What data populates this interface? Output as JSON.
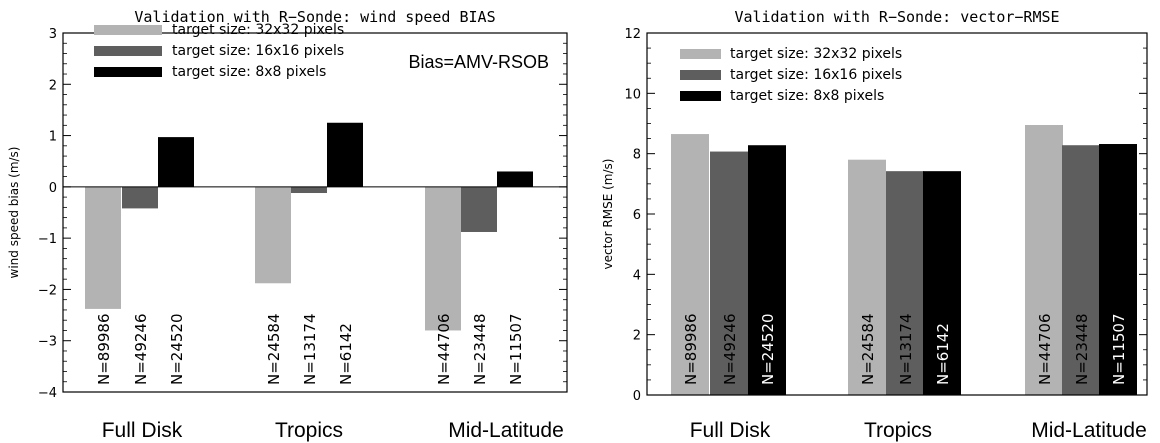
{
  "chart_data": [
    {
      "type": "bar",
      "title": "Validation with R−Sonde: wind speed BIAS",
      "ylabel": "wind speed bias (m/s)",
      "xlabel": "",
      "ylim": [
        -4,
        3
      ],
      "yticks": [
        "−4",
        "−3",
        "−2",
        "−1",
        "0",
        "1",
        "2",
        "3"
      ],
      "annotation": "Bias=AMV-RSOB",
      "categories": [
        "Full Disk",
        "Tropics",
        "Mid-Latitude"
      ],
      "series": [
        {
          "name": "target size: 32x32 pixels",
          "color": "#b3b3b3",
          "values": [
            -2.38,
            -1.88,
            -2.8
          ],
          "counts": [
            "N=89986",
            "N=24584",
            "N=44706"
          ]
        },
        {
          "name": "target size: 16x16 pixels",
          "color": "#5e5e5e",
          "values": [
            -0.42,
            -0.12,
            -0.88
          ],
          "counts": [
            "N=49246",
            "N=13174",
            "N=23448"
          ]
        },
        {
          "name": "target size: 8x8 pixels",
          "color": "#000000",
          "values": [
            0.97,
            1.25,
            0.3
          ],
          "counts": [
            "N=24520",
            "N=6142",
            "N=11507"
          ]
        }
      ],
      "legend_position": "top-left"
    },
    {
      "type": "bar",
      "title": "Validation with R−Sonde: vector−RMSE",
      "ylabel": "vector RMSE (m/s)",
      "xlabel": "",
      "ylim": [
        0,
        12
      ],
      "yticks": [
        "0",
        "2",
        "4",
        "6",
        "8",
        "10",
        "12"
      ],
      "categories": [
        "Full Disk",
        "Tropics",
        "Mid-Latitude"
      ],
      "series": [
        {
          "name": "target size: 32x32 pixels",
          "color": "#b3b3b3",
          "values": [
            8.65,
            7.8,
            8.95
          ],
          "counts": [
            "N=89986",
            "N=24584",
            "N=44706"
          ]
        },
        {
          "name": "target size: 16x16 pixels",
          "color": "#5e5e5e",
          "values": [
            8.07,
            7.42,
            8.28
          ],
          "counts": [
            "N=49246",
            "N=13174",
            "N=23448"
          ]
        },
        {
          "name": "target size: 8x8 pixels",
          "color": "#000000",
          "values": [
            8.28,
            7.42,
            8.32
          ],
          "counts": [
            "N=24520",
            "N=6142",
            "N=11507"
          ]
        }
      ],
      "legend_position": "top-left"
    }
  ]
}
